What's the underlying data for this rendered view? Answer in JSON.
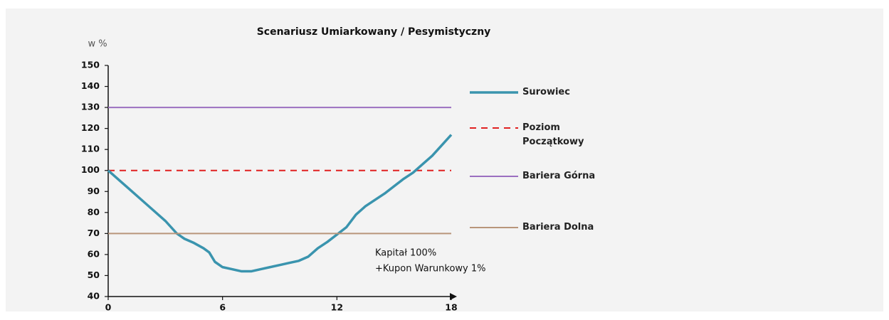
{
  "chart_data": {
    "type": "line",
    "title": "Scenariusz Umiarkowany / Pesymistyczny",
    "ylabel": "w %",
    "xlim": [
      0,
      18
    ],
    "xticks": [
      0,
      6,
      12,
      18
    ],
    "ylim": [
      40,
      150
    ],
    "yticks": [
      40,
      50,
      60,
      70,
      80,
      90,
      100,
      110,
      120,
      130,
      140,
      150
    ],
    "annotations": [
      "Kapitał 100%",
      "+Kupon Warunkowy 1%"
    ],
    "series": [
      {
        "name": "Surowiec",
        "color": "#3a94ae",
        "style": "solid",
        "x": [
          0,
          1,
          2,
          3,
          3.6,
          4,
          4.5,
          5,
          5.3,
          5.6,
          6,
          6.5,
          7,
          7.5,
          8,
          8.5,
          9,
          9.5,
          10,
          10.5,
          11,
          11.5,
          12,
          12.5,
          13,
          13.5,
          14,
          14.5,
          15,
          15.5,
          16,
          16.5,
          17,
          17.5,
          18
        ],
        "values": [
          100,
          92,
          84,
          76,
          70,
          67.5,
          65.5,
          63,
          61,
          56.5,
          54,
          53,
          52,
          52,
          53,
          54,
          55,
          56,
          57,
          59,
          63,
          66,
          69.5,
          73,
          79,
          83,
          86,
          89,
          92.5,
          96,
          99,
          103,
          107,
          112,
          117
        ]
      },
      {
        "name": "Poziom Początkowy",
        "color": "#e02020",
        "style": "dashed",
        "x": [
          0,
          18
        ],
        "values": [
          100,
          100
        ]
      },
      {
        "name": "Bariera Górna",
        "color": "#9b6fc0",
        "style": "solid",
        "x": [
          0,
          18
        ],
        "values": [
          130,
          130
        ]
      },
      {
        "name": "Bariera Dolna",
        "color": "#b8957a",
        "style": "solid",
        "x": [
          0,
          18
        ],
        "values": [
          70,
          70
        ]
      }
    ]
  }
}
